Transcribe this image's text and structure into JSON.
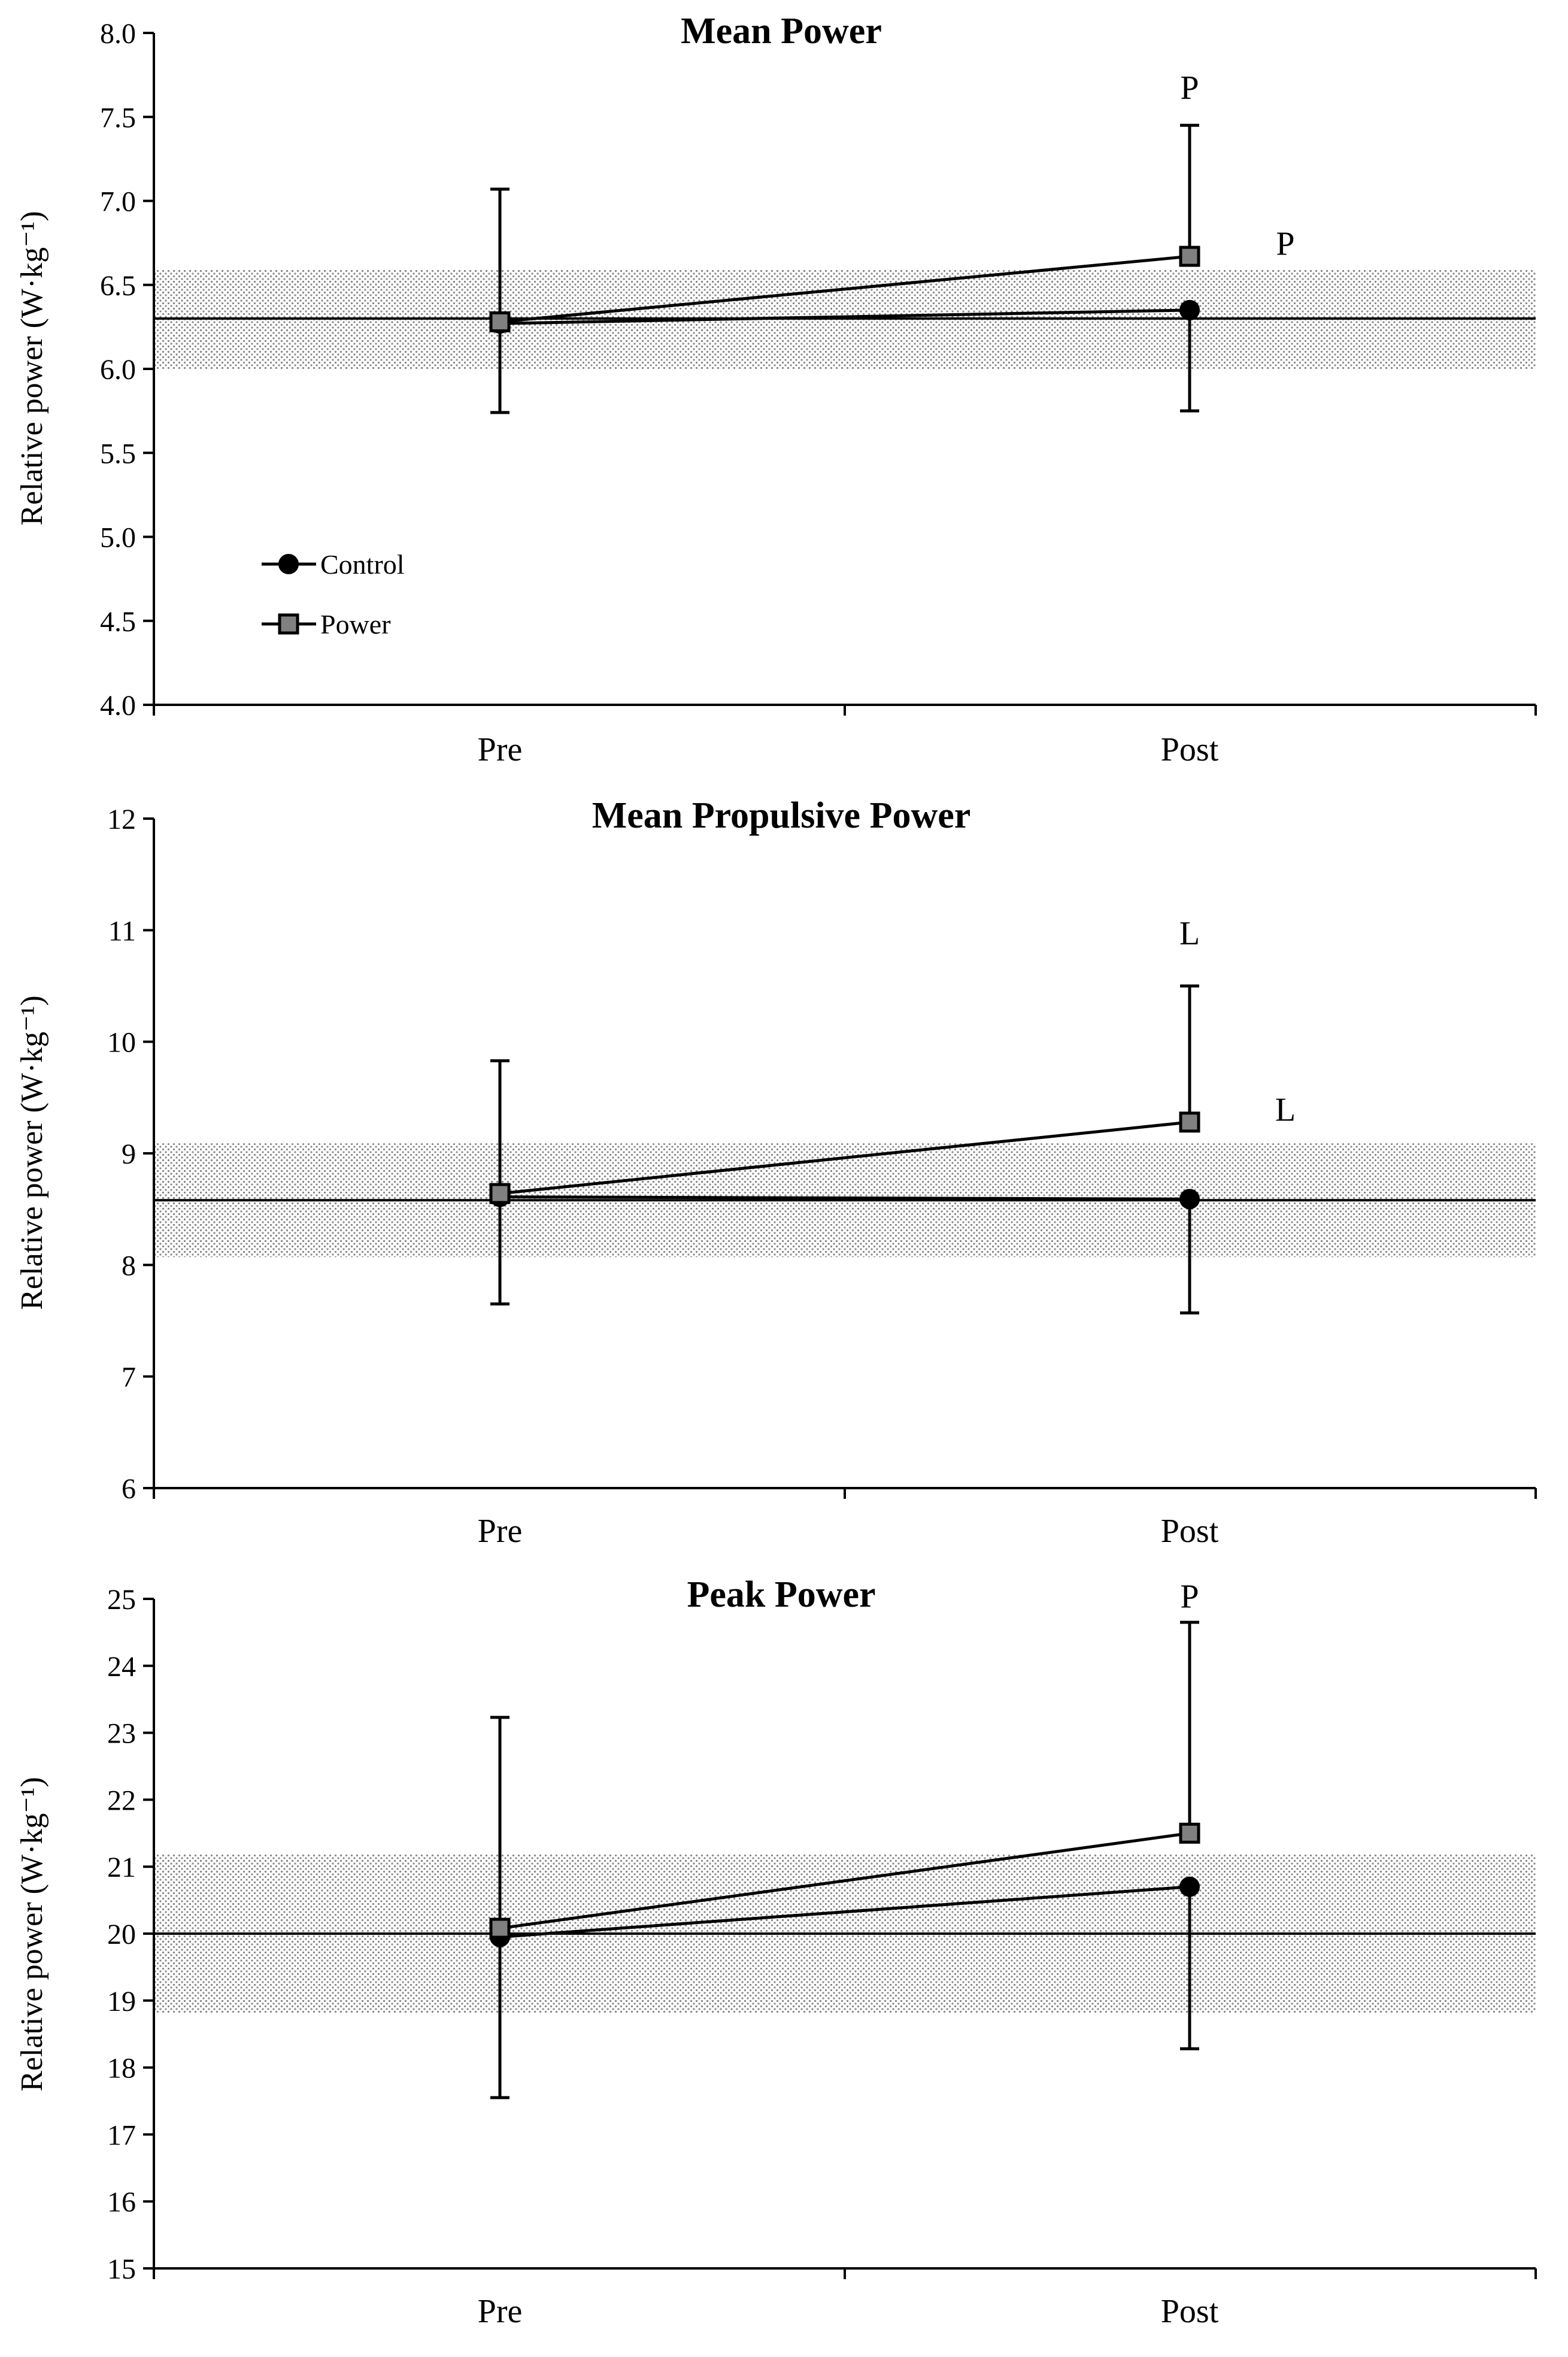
{
  "legend": {
    "position": "bottom-left of first panel",
    "entries": [
      {
        "name": "Control",
        "marker": "circle",
        "color": "#000000"
      },
      {
        "name": "Power",
        "marker": "square",
        "color": "#808080"
      }
    ]
  },
  "chart_data": [
    {
      "type": "line",
      "title": "Mean Power",
      "ylabel": "Relative power (W·kg⁻¹)",
      "ylim": [
        4.0,
        8.0
      ],
      "yticks": [
        "4.0",
        "4.5",
        "5.0",
        "5.5",
        "6.0",
        "6.5",
        "7.0",
        "7.5",
        "8.0"
      ],
      "categories": [
        "Pre",
        "Post"
      ],
      "band": {
        "lower": 6.0,
        "upper": 6.59,
        "reference": 6.3
      },
      "series": [
        {
          "name": "Control",
          "values": [
            6.27,
            6.35
          ],
          "err_upper": [
            null,
            null
          ],
          "err_lower": [
            5.74,
            5.75
          ]
        },
        {
          "name": "Power",
          "values": [
            6.28,
            6.67
          ],
          "err_upper": [
            7.07,
            7.45
          ],
          "err_lower": [
            null,
            null
          ]
        }
      ],
      "annotations": [
        {
          "text": "P",
          "category": "Post",
          "y": 7.68,
          "side": "center"
        },
        {
          "text": "P",
          "category": "Post",
          "y": 6.75,
          "side": "right"
        }
      ]
    },
    {
      "type": "line",
      "title": "Mean Propulsive Power",
      "ylabel": "Relative power (W·kg⁻¹)",
      "ylim": [
        6,
        12
      ],
      "yticks": [
        "6",
        "7",
        "8",
        "9",
        "10",
        "11",
        "12"
      ],
      "categories": [
        "Pre",
        "Post"
      ],
      "band": {
        "lower": 8.07,
        "upper": 9.09,
        "reference": 8.58
      },
      "series": [
        {
          "name": "Control",
          "values": [
            8.61,
            8.59
          ],
          "err_upper": [
            null,
            null
          ],
          "err_lower": [
            7.65,
            7.57
          ]
        },
        {
          "name": "Power",
          "values": [
            8.64,
            9.28
          ],
          "err_upper": [
            9.83,
            10.5
          ],
          "err_lower": [
            null,
            null
          ]
        }
      ],
      "annotations": [
        {
          "text": "L",
          "category": "Post",
          "y": 10.98,
          "side": "center"
        },
        {
          "text": "L",
          "category": "Post",
          "y": 9.4,
          "side": "right"
        }
      ]
    },
    {
      "type": "line",
      "title": "Peak Power",
      "ylabel": "Relative power (W·kg⁻¹)",
      "ylim": [
        15,
        25
      ],
      "yticks": [
        "15",
        "16",
        "17",
        "18",
        "19",
        "20",
        "21",
        "22",
        "23",
        "24",
        "25"
      ],
      "categories": [
        "Pre",
        "Post"
      ],
      "band": {
        "lower": 18.82,
        "upper": 21.18,
        "reference": 20.0
      },
      "series": [
        {
          "name": "Control",
          "values": [
            19.95,
            20.7
          ],
          "err_upper": [
            null,
            null
          ],
          "err_lower": [
            17.55,
            18.28
          ]
        },
        {
          "name": "Power",
          "values": [
            20.08,
            21.5
          ],
          "err_upper": [
            23.23,
            24.65
          ],
          "err_lower": [
            null,
            null
          ]
        }
      ],
      "annotations": [
        {
          "text": "P",
          "category": "Post",
          "y": 25.05,
          "side": "center"
        }
      ]
    }
  ]
}
